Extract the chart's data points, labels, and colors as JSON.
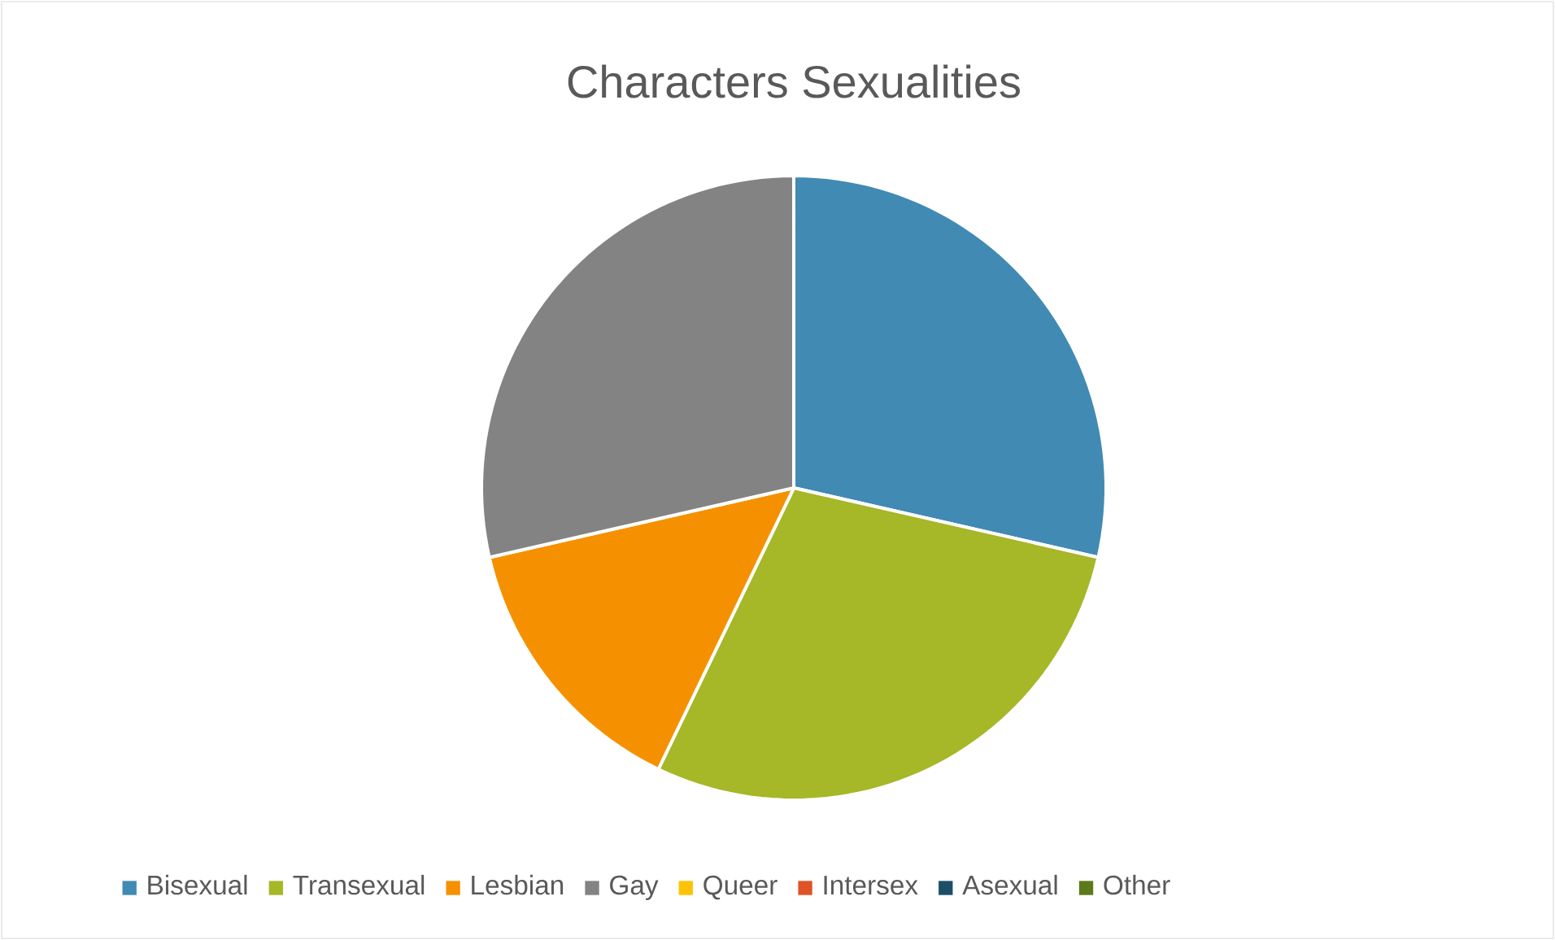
{
  "chart_data": {
    "type": "pie",
    "title": "Characters Sexualities",
    "categories": [
      "Bisexual",
      "Transexual",
      "Lesbian",
      "Gay",
      "Queer",
      "Intersex",
      "Asexual",
      "Other"
    ],
    "values": [
      28.57,
      28.57,
      14.29,
      28.57,
      0,
      0,
      0,
      0
    ],
    "colors": [
      "#418ab3",
      "#a6b727",
      "#f59100",
      "#838383",
      "#fec306",
      "#df5327",
      "#1c4e68",
      "#5b7a1c"
    ],
    "legend": "bottom"
  }
}
